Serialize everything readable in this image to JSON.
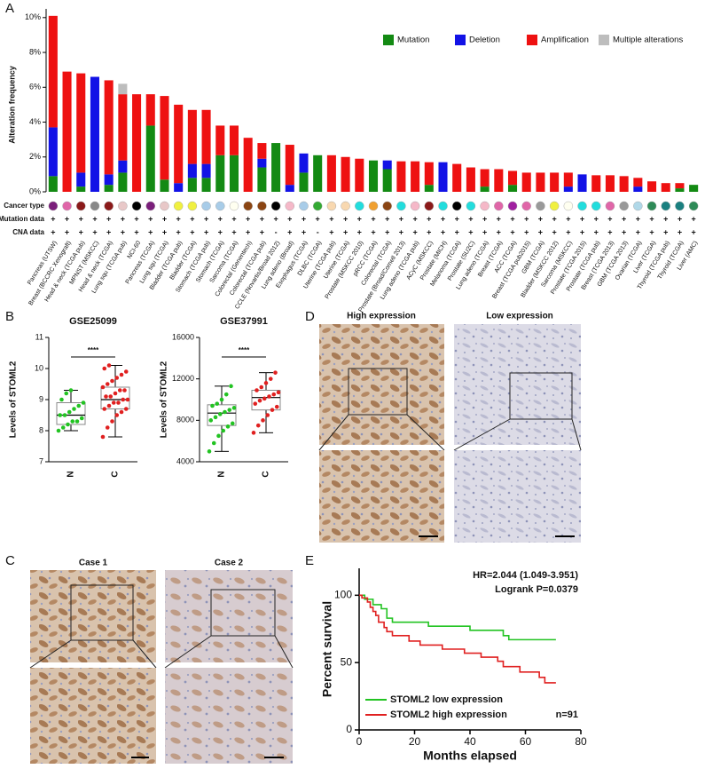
{
  "panel_labels": [
    "A",
    "B",
    "C",
    "D",
    "E"
  ],
  "panel_c": {
    "captions": [
      "Case 1",
      "Case 2"
    ]
  },
  "panel_d": {
    "captions": [
      "High expression",
      "Low expression"
    ]
  },
  "chart_data": [
    {
      "type": "stacked_bar",
      "ylabel": "Alteration frequency",
      "categories": [
        "Pancreas (UTSW)",
        "Breast (BCCRC Xenograft)",
        "Head & neck (TCGA pub)",
        "MPNST (MSKCC)",
        "Head & neck (TCGA)",
        "Lung squ (TCGA pub)",
        "NCI-60",
        "Pancreas (TCGA)",
        "Lung squ (TCGA)",
        "Bladder (TCGA pub)",
        "Bladder (TCGA)",
        "Stomach (TCGA pub)",
        "Stomach (TCGA)",
        "Sarcoma (TCGA)",
        "Colorectal (Genentech)",
        "Colorectal (TCGA pub)",
        "CCLE (Novartis/Broad 2012)",
        "Lung adeno (Broad)",
        "Esophagus (TCGA)",
        "DLBC (TCGA)",
        "Uterine (TCGA pub)",
        "Uterine (TCGA)",
        "Prostate (MSKCC 2010)",
        "pRCC (TCGA)",
        "Colorectal (TCGA)",
        "Prostate (Broad/Cornell 2013)",
        "Lung adeno (TCGA pub)",
        "ACyC (MSKCC)",
        "Prostate (MICH)",
        "Melanoma (TCGA)",
        "Prostate (SU2C)",
        "Lung adeno (TCGA)",
        "Breast (TCGA)",
        "ACC (TCGA)",
        "Breast (TCGA pub2015)",
        "GBM (TCGA)",
        "Bladder (MSKCC 2012)",
        "Sarcoma (MSKCC)",
        "Prostate (TCGA 2015)",
        "Prostate (TCGA pub)",
        "Breast (TCGA 2013)",
        "GBM (TCGA 2013)",
        "Ovarian (TCGA)",
        "Liver (TCGA)",
        "Thyroid (TCGA pub)",
        "Thyroid (TCGA)",
        "Liver (AMC)"
      ],
      "series": [
        {
          "name": "Mutation",
          "color": "#138a13",
          "values": [
            0.9,
            0,
            0.3,
            0,
            0.4,
            1.1,
            0,
            3.8,
            0.7,
            0,
            0.8,
            0.8,
            2.1,
            2.1,
            0,
            1.4,
            2.8,
            0,
            1.1,
            2.1,
            0,
            0,
            0,
            1.8,
            1.3,
            0,
            0,
            0.4,
            0,
            0,
            0,
            0.3,
            0,
            0.4,
            0,
            0,
            0,
            0,
            0,
            0,
            0,
            0,
            0,
            0,
            0,
            0.2,
            0.4
          ]
        },
        {
          "name": "Deletion",
          "color": "#1212e6",
          "values": [
            2.8,
            0,
            0.8,
            6.6,
            0.6,
            0.7,
            0,
            0,
            0,
            0.5,
            0.8,
            0.8,
            0,
            0,
            0,
            0.5,
            0,
            0.4,
            1.1,
            0,
            0,
            0,
            0,
            0,
            0.5,
            0,
            0,
            0,
            1.7,
            0,
            0,
            0,
            0,
            0,
            0,
            0,
            0,
            0.3,
            1.0,
            0,
            0,
            0,
            0.3,
            0,
            0,
            0,
            0
          ]
        },
        {
          "name": "Amplification",
          "color": "#ee1111",
          "values": [
            6.4,
            6.9,
            5.7,
            0,
            5.4,
            3.8,
            5.6,
            1.8,
            4.8,
            4.5,
            3.1,
            3.1,
            1.7,
            1.7,
            3.1,
            0.9,
            0,
            2.3,
            0,
            0,
            2.1,
            2.0,
            1.9,
            0,
            0,
            1.75,
            1.75,
            1.3,
            0,
            1.6,
            1.4,
            1.0,
            1.3,
            0.8,
            1.1,
            1.1,
            1.1,
            0.8,
            0,
            0.95,
            0.95,
            0.9,
            0.5,
            0.6,
            0.5,
            0.3,
            0
          ]
        },
        {
          "name": "Multiple alterations",
          "color": "#bdbdbd",
          "values": [
            0,
            0,
            0,
            0,
            0,
            0.6,
            0,
            0,
            0,
            0,
            0,
            0,
            0,
            0,
            0,
            0,
            0,
            0,
            0,
            0,
            0,
            0,
            0,
            0,
            0,
            0,
            0,
            0,
            0,
            0,
            0,
            0,
            0,
            0,
            0,
            0,
            0,
            0,
            0,
            0,
            0,
            0,
            0,
            0,
            0,
            0,
            0
          ]
        }
      ],
      "ylim": [
        0,
        10.5
      ],
      "yticks": [
        {
          "value": 0,
          "label": "0%"
        },
        {
          "value": 2,
          "label": "2%"
        },
        {
          "value": 4,
          "label": "4%"
        },
        {
          "value": 6,
          "label": "6%"
        },
        {
          "value": 8,
          "label": "8%"
        },
        {
          "value": 10,
          "label": "10%"
        }
      ],
      "track_labels": [
        "Cancer type",
        "Mutation data",
        "CNA data"
      ],
      "cancer_type_colors": [
        "#7b1f7b",
        "#e066a8",
        "#8b1a1a",
        "#888888",
        "#8b1a1a",
        "#e8c8c8",
        "#000000",
        "#7b1f7b",
        "#e8c8c8",
        "#f0f040",
        "#f0f040",
        "#a8cce8",
        "#a8cce8",
        "#fffff0",
        "#8b4513",
        "#8b4513",
        "#000000",
        "#f5b8c8",
        "#a8cce8",
        "#33aa33",
        "#f8d8b0",
        "#f8d8b0",
        "#22dddd",
        "#f0a030",
        "#8b4513",
        "#22dddd",
        "#f5b8c8",
        "#8b1a1a",
        "#22dddd",
        "#000000",
        "#22dddd",
        "#f5b8c8",
        "#e066a8",
        "#a020a0",
        "#e066a8",
        "#999999",
        "#f0f040",
        "#fffff0",
        "#22dddd",
        "#22dddd",
        "#e066a8",
        "#999999",
        "#b0d8e8",
        "#2e8b57",
        "#1a8080",
        "#1a8080",
        "#2e8b57"
      ],
      "mutation_data": [
        "+",
        "+",
        "+",
        "+",
        "+",
        "+",
        "+",
        "+",
        "+",
        "+",
        "+",
        "+",
        "+",
        "+",
        "+",
        "+",
        "+",
        "+",
        "+",
        "+",
        "+",
        "+",
        "+",
        "+",
        "+",
        "+",
        "+",
        "+",
        "+",
        "+",
        "+",
        "+",
        "+",
        "+",
        "+",
        "+",
        "+",
        "+",
        "+",
        "+",
        "+",
        "+",
        "+",
        "+",
        "+",
        "+",
        "+"
      ],
      "cna_data": [
        "+",
        "+",
        "+",
        "+",
        "+",
        "+",
        "+",
        "+",
        "+",
        "+",
        "+",
        "+",
        "+",
        "+",
        "+",
        "+",
        "-",
        "+",
        "+",
        "-",
        "+",
        "+",
        "+",
        "+",
        "+",
        "+",
        "+",
        "+",
        "+",
        "+",
        "+",
        "+",
        "+",
        "+",
        "+",
        "+",
        "+",
        "+",
        "+",
        "+",
        "+",
        "+",
        "+",
        "+",
        "+",
        "+",
        "+"
      ]
    },
    {
      "type": "box",
      "title": "GSE25099",
      "ylabel": "Levels of STOML2",
      "significance": "****",
      "categories": [
        "N",
        "C"
      ],
      "boxes": [
        {
          "color": "#22c322",
          "min": 8.0,
          "q1": 8.2,
          "median": 8.5,
          "q3": 8.9,
          "max": 9.3,
          "points": [
            8.0,
            8.1,
            8.2,
            8.3,
            8.3,
            8.4,
            8.5,
            8.5,
            8.6,
            8.7,
            8.8,
            8.9,
            9.0,
            9.2,
            9.3
          ]
        },
        {
          "color": "#e02020",
          "min": 7.8,
          "q1": 8.7,
          "median": 9.0,
          "q3": 9.4,
          "max": 10.1,
          "points": [
            7.8,
            8.1,
            8.3,
            8.5,
            8.6,
            8.7,
            8.7,
            8.8,
            8.9,
            8.9,
            9.0,
            9.0,
            9.1,
            9.1,
            9.2,
            9.3,
            9.3,
            9.4,
            9.5,
            9.6,
            9.7,
            9.8,
            9.9,
            10.0,
            10.1
          ]
        }
      ],
      "ylim": [
        7,
        11
      ],
      "yticks": [
        7,
        8,
        9,
        10,
        11
      ]
    },
    {
      "type": "box",
      "title": "GSE37991",
      "ylabel": "Levels of STOML2",
      "significance": "****",
      "categories": [
        "N",
        "C"
      ],
      "boxes": [
        {
          "color": "#22c322",
          "min": 5000,
          "q1": 7500,
          "median": 8700,
          "q3": 9500,
          "max": 11300,
          "points": [
            5000,
            5800,
            6500,
            7000,
            7400,
            7700,
            8000,
            8300,
            8600,
            8800,
            9000,
            9200,
            9400,
            9600,
            10000,
            10500,
            11300
          ]
        },
        {
          "color": "#e02020",
          "min": 6800,
          "q1": 9000,
          "median": 10200,
          "q3": 10900,
          "max": 12600,
          "points": [
            6800,
            7500,
            8000,
            8500,
            9000,
            9300,
            9600,
            9900,
            10100,
            10300,
            10500,
            10700,
            10900,
            11200,
            11600,
            12000,
            12600
          ]
        }
      ],
      "ylim": [
        4000,
        16000
      ],
      "yticks": [
        4000,
        8000,
        12000,
        16000
      ]
    },
    {
      "type": "line",
      "xlabel": "Months elapsed",
      "ylabel": "Percent survival",
      "annotations": [
        "HR=2.044 (1.049-3.951)",
        "Logrank P=0.0379",
        "n=91"
      ],
      "series": [
        {
          "name": "STOML2 low expression",
          "color": "#22c322",
          "x": [
            0,
            2,
            2,
            5,
            5,
            8,
            8,
            10,
            10,
            12,
            12,
            25,
            25,
            40,
            40,
            52,
            52,
            54,
            54,
            71
          ],
          "y": [
            100,
            100,
            97,
            97,
            93,
            93,
            90,
            90,
            83,
            83,
            80,
            80,
            77,
            77,
            74,
            74,
            70,
            70,
            67,
            67
          ]
        },
        {
          "name": "STOML2 high expression",
          "color": "#e02020",
          "x": [
            0,
            1,
            1,
            3,
            3,
            4,
            4,
            5,
            5,
            6,
            6,
            7,
            7,
            9,
            9,
            10,
            10,
            12,
            12,
            18,
            18,
            22,
            22,
            30,
            30,
            38,
            38,
            44,
            44,
            50,
            50,
            52,
            52,
            58,
            58,
            65,
            65,
            67,
            67,
            71
          ],
          "y": [
            100,
            100,
            98,
            98,
            95,
            95,
            91,
            91,
            88,
            88,
            85,
            85,
            80,
            80,
            76,
            76,
            73,
            73,
            70,
            70,
            66,
            66,
            63,
            63,
            60,
            60,
            57,
            57,
            54,
            54,
            51,
            51,
            47,
            47,
            43,
            43,
            39,
            39,
            35,
            35
          ]
        }
      ],
      "xlim": [
        0,
        80
      ],
      "xticks": [
        0,
        20,
        40,
        60,
        80
      ],
      "ylim": [
        0,
        120
      ],
      "yticks": [
        0,
        50,
        100
      ]
    }
  ]
}
